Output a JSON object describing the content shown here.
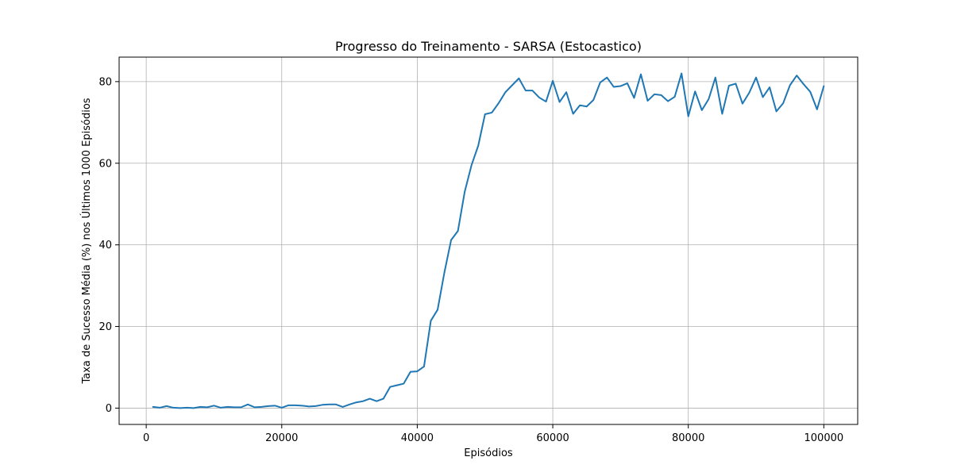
{
  "chart_data": {
    "type": "line",
    "title": "Progresso do Treinamento - SARSA (Estocastico)",
    "xlabel": "Episódios",
    "ylabel": "Taxa de Sucesso Média (%) nos Últimos 1000 Episódios",
    "xlim": [
      -4000,
      105000
    ],
    "ylim": [
      -4,
      86
    ],
    "xticks": [
      0,
      20000,
      40000,
      60000,
      80000,
      100000
    ],
    "xtick_labels": [
      "0",
      "20000",
      "40000",
      "60000",
      "80000",
      "100000"
    ],
    "yticks": [
      0,
      20,
      40,
      60,
      80
    ],
    "ytick_labels": [
      "0",
      "20",
      "40",
      "60",
      "80"
    ],
    "grid": true,
    "series": [
      {
        "color": "#1f77b4",
        "x": [
          1000,
          2000,
          3000,
          4000,
          5000,
          6000,
          7000,
          8000,
          9000,
          10000,
          11000,
          12000,
          13000,
          14000,
          15000,
          16000,
          17000,
          18000,
          19000,
          20000,
          21000,
          22000,
          23000,
          24000,
          25000,
          26000,
          27000,
          28000,
          29000,
          30000,
          31000,
          32000,
          33000,
          34000,
          35000,
          36000,
          37000,
          38000,
          39000,
          40000,
          41000,
          42000,
          43000,
          44000,
          45000,
          46000,
          47000,
          48000,
          49000,
          50000,
          51000,
          52000,
          53000,
          54000,
          55000,
          56000,
          57000,
          58000,
          59000,
          60000,
          61000,
          62000,
          63000,
          64000,
          65000,
          66000,
          67000,
          68000,
          69000,
          70000,
          71000,
          72000,
          73000,
          74000,
          75000,
          76000,
          77000,
          78000,
          79000,
          80000,
          81000,
          82000,
          83000,
          84000,
          85000,
          86000,
          87000,
          88000,
          89000,
          90000,
          91000,
          92000,
          93000,
          94000,
          95000,
          96000,
          97000,
          98000,
          99000,
          100000
        ],
        "y": [
          0.3,
          0.1,
          0.5,
          0.1,
          0.0,
          0.1,
          0.0,
          0.3,
          0.2,
          0.6,
          0.1,
          0.3,
          0.2,
          0.2,
          0.9,
          0.2,
          0.3,
          0.5,
          0.6,
          0.1,
          0.7,
          0.7,
          0.6,
          0.4,
          0.5,
          0.8,
          0.9,
          0.9,
          0.3,
          0.9,
          1.4,
          1.7,
          2.3,
          1.7,
          2.3,
          5.2,
          5.6,
          6.0,
          8.9,
          9.0,
          10.2,
          21.4,
          24.1,
          33.2,
          41.2,
          43.4,
          53.0,
          59.5,
          64.3,
          72.0,
          72.4,
          74.7,
          77.4,
          79.1,
          80.8,
          77.8,
          77.8,
          76.1,
          75.1,
          80.2,
          75.0,
          77.4,
          72.1,
          74.2,
          73.9,
          75.5,
          79.8,
          81.0,
          78.7,
          78.9,
          79.6,
          76.0,
          81.8,
          75.3,
          76.9,
          76.7,
          75.2,
          76.3,
          82.0,
          71.5,
          77.6,
          73.0,
          75.7,
          81.0,
          72.1,
          79.0,
          79.5,
          74.6,
          77.3,
          81.0,
          76.2,
          78.6,
          72.7,
          74.7,
          79.1,
          81.5,
          79.4,
          77.5,
          73.2,
          78.9
        ]
      }
    ]
  }
}
